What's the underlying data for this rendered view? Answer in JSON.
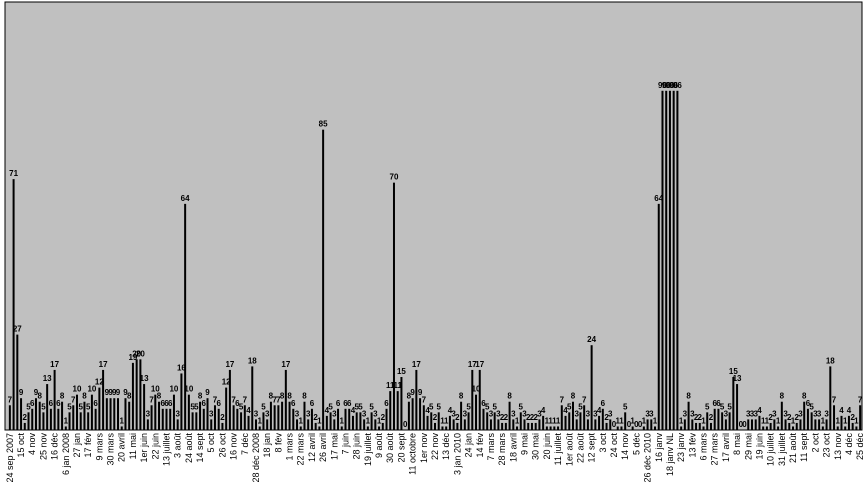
{
  "chart_data": {
    "type": "bar",
    "color": "#000000",
    "background": "#c0c0c0",
    "ylim": [
      0,
      120
    ],
    "categories": [
      "24 sep 2007",
      null,
      null,
      "15 oct",
      null,
      null,
      "4 nov",
      null,
      null,
      "25 nov",
      null,
      null,
      "16 déc",
      null,
      null,
      "6 jan 2008",
      null,
      null,
      "27 jan",
      null,
      null,
      "17 fév",
      null,
      null,
      "9 mars",
      null,
      null,
      "30 mars",
      null,
      null,
      "20 avril",
      null,
      null,
      "11 mai",
      null,
      null,
      "1er juin",
      null,
      null,
      "22 juin",
      null,
      null,
      "13 juillet",
      null,
      null,
      "3 août",
      null,
      null,
      "24 août",
      null,
      null,
      "14 sept",
      null,
      null,
      "5 oct",
      null,
      null,
      "26 oct",
      null,
      null,
      "16 nov",
      null,
      null,
      "7 déc",
      null,
      null,
      "28 déc 2008",
      null,
      null,
      "18 jan",
      null,
      null,
      "8 fév",
      null,
      null,
      "1 mars",
      null,
      null,
      "22 mars",
      null,
      null,
      "12 avril",
      null,
      null,
      "26 avril",
      null,
      null,
      "17 mai",
      null,
      null,
      "7 juin",
      null,
      null,
      "28 juin",
      null,
      null,
      "19 juillet",
      null,
      null,
      "9 août",
      null,
      null,
      "30 août",
      null,
      null,
      "20 sept",
      null,
      null,
      "11 octobre",
      null,
      null,
      "1er nov",
      null,
      null,
      "22 nov",
      null,
      null,
      "13 déc",
      null,
      null,
      "3 jan 2010",
      null,
      null,
      "24 jan",
      null,
      null,
      "14 fév",
      null,
      null,
      "7 mars",
      null,
      null,
      "28 mars",
      null,
      null,
      "18 avril",
      null,
      null,
      "9 mai",
      null,
      null,
      "30 mai",
      null,
      null,
      "20 juin",
      null,
      null,
      "11 juillet",
      null,
      null,
      "1er août",
      null,
      null,
      "22 août",
      null,
      null,
      "12 sept",
      null,
      null,
      "3 oct",
      null,
      null,
      "24 oct",
      null,
      null,
      "14 nov",
      null,
      null,
      "5 déc",
      null,
      null,
      "26 déc 2010",
      null,
      null,
      "16 janv",
      null,
      null,
      "18 janv NL",
      null,
      null,
      "23 janv",
      null,
      null,
      "13 fév",
      null,
      null,
      "6 mars",
      null,
      null,
      "27 mars",
      null,
      null,
      "17 avril",
      null,
      null,
      "8 mai",
      null,
      null,
      "29 mai",
      null,
      null,
      "19 juin",
      null,
      null,
      "10 juillet",
      null,
      null,
      "31 juillet",
      null,
      null,
      "21 août",
      null,
      null,
      "11 sept",
      null,
      null,
      "2 oct",
      null,
      null,
      "23 oct",
      null,
      null,
      "13 nov",
      null,
      null,
      "4 déc",
      null,
      null,
      "25 déc"
    ],
    "values": [
      7,
      71,
      27,
      9,
      2,
      5,
      6,
      9,
      8,
      5,
      13,
      6,
      17,
      6,
      8,
      1,
      5,
      7,
      10,
      5,
      8,
      5,
      10,
      6,
      12,
      17,
      9,
      9,
      9,
      9,
      1,
      9,
      8,
      19,
      20,
      20,
      13,
      3,
      7,
      10,
      8,
      6,
      6,
      6,
      10,
      3,
      16,
      64,
      10,
      5,
      5,
      8,
      6,
      9,
      3,
      7,
      6,
      2,
      12,
      17,
      7,
      6,
      5,
      7,
      4,
      18,
      3,
      1,
      5,
      3,
      8,
      7,
      7,
      8,
      17,
      8,
      6,
      3,
      1,
      8,
      3,
      6,
      2,
      1,
      85,
      4,
      5,
      3,
      6,
      1,
      6,
      6,
      4,
      5,
      5,
      3,
      1,
      5,
      3,
      1,
      2,
      6,
      11,
      70,
      11,
      15,
      0,
      8,
      9,
      17,
      9,
      7,
      4,
      5,
      2,
      5,
      1,
      1,
      4,
      3,
      2,
      8,
      3,
      5,
      17,
      10,
      17,
      6,
      5,
      3,
      5,
      3,
      2,
      2,
      8,
      3,
      1,
      5,
      3,
      2,
      2,
      2,
      3,
      4,
      1,
      1,
      1,
      1,
      7,
      4,
      5,
      8,
      3,
      5,
      7,
      3,
      24,
      3,
      4,
      6,
      2,
      3,
      0,
      1,
      1,
      5,
      0,
      1,
      0,
      0,
      1,
      3,
      3,
      1,
      64,
      96,
      96,
      96,
      96,
      96,
      1,
      3,
      8,
      3,
      2,
      2,
      1,
      5,
      2,
      6,
      6,
      5,
      3,
      5,
      15,
      13,
      0,
      0,
      3,
      3,
      3,
      4,
      1,
      1,
      2,
      3,
      1,
      8,
      3,
      2,
      1,
      2,
      3,
      8,
      6,
      5,
      3,
      3,
      1,
      3,
      18,
      7,
      1,
      4,
      1,
      4,
      2,
      1,
      7
    ]
  }
}
